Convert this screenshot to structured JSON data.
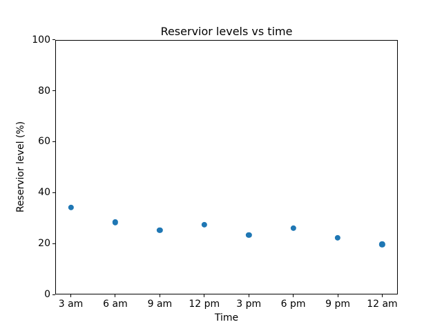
{
  "chart_data": {
    "type": "scatter",
    "title": "Reservior levels vs time",
    "xlabel": "Time",
    "ylabel": "Reservior level (%)",
    "categories": [
      "3 am",
      "6 am",
      "9 am",
      "12 pm",
      "3 pm",
      "6 pm",
      "9 pm",
      "12 am"
    ],
    "values": [
      34.2,
      28.4,
      25.2,
      27.5,
      23.4,
      26.0,
      22.3,
      19.7
    ],
    "ylim": [
      0,
      100
    ],
    "yticks": [
      0,
      20,
      40,
      60,
      80,
      100
    ],
    "marker_color": "#1f77b4",
    "background_color": "#ffffff",
    "axis_color": "#000000",
    "grid": false,
    "legend": false
  }
}
